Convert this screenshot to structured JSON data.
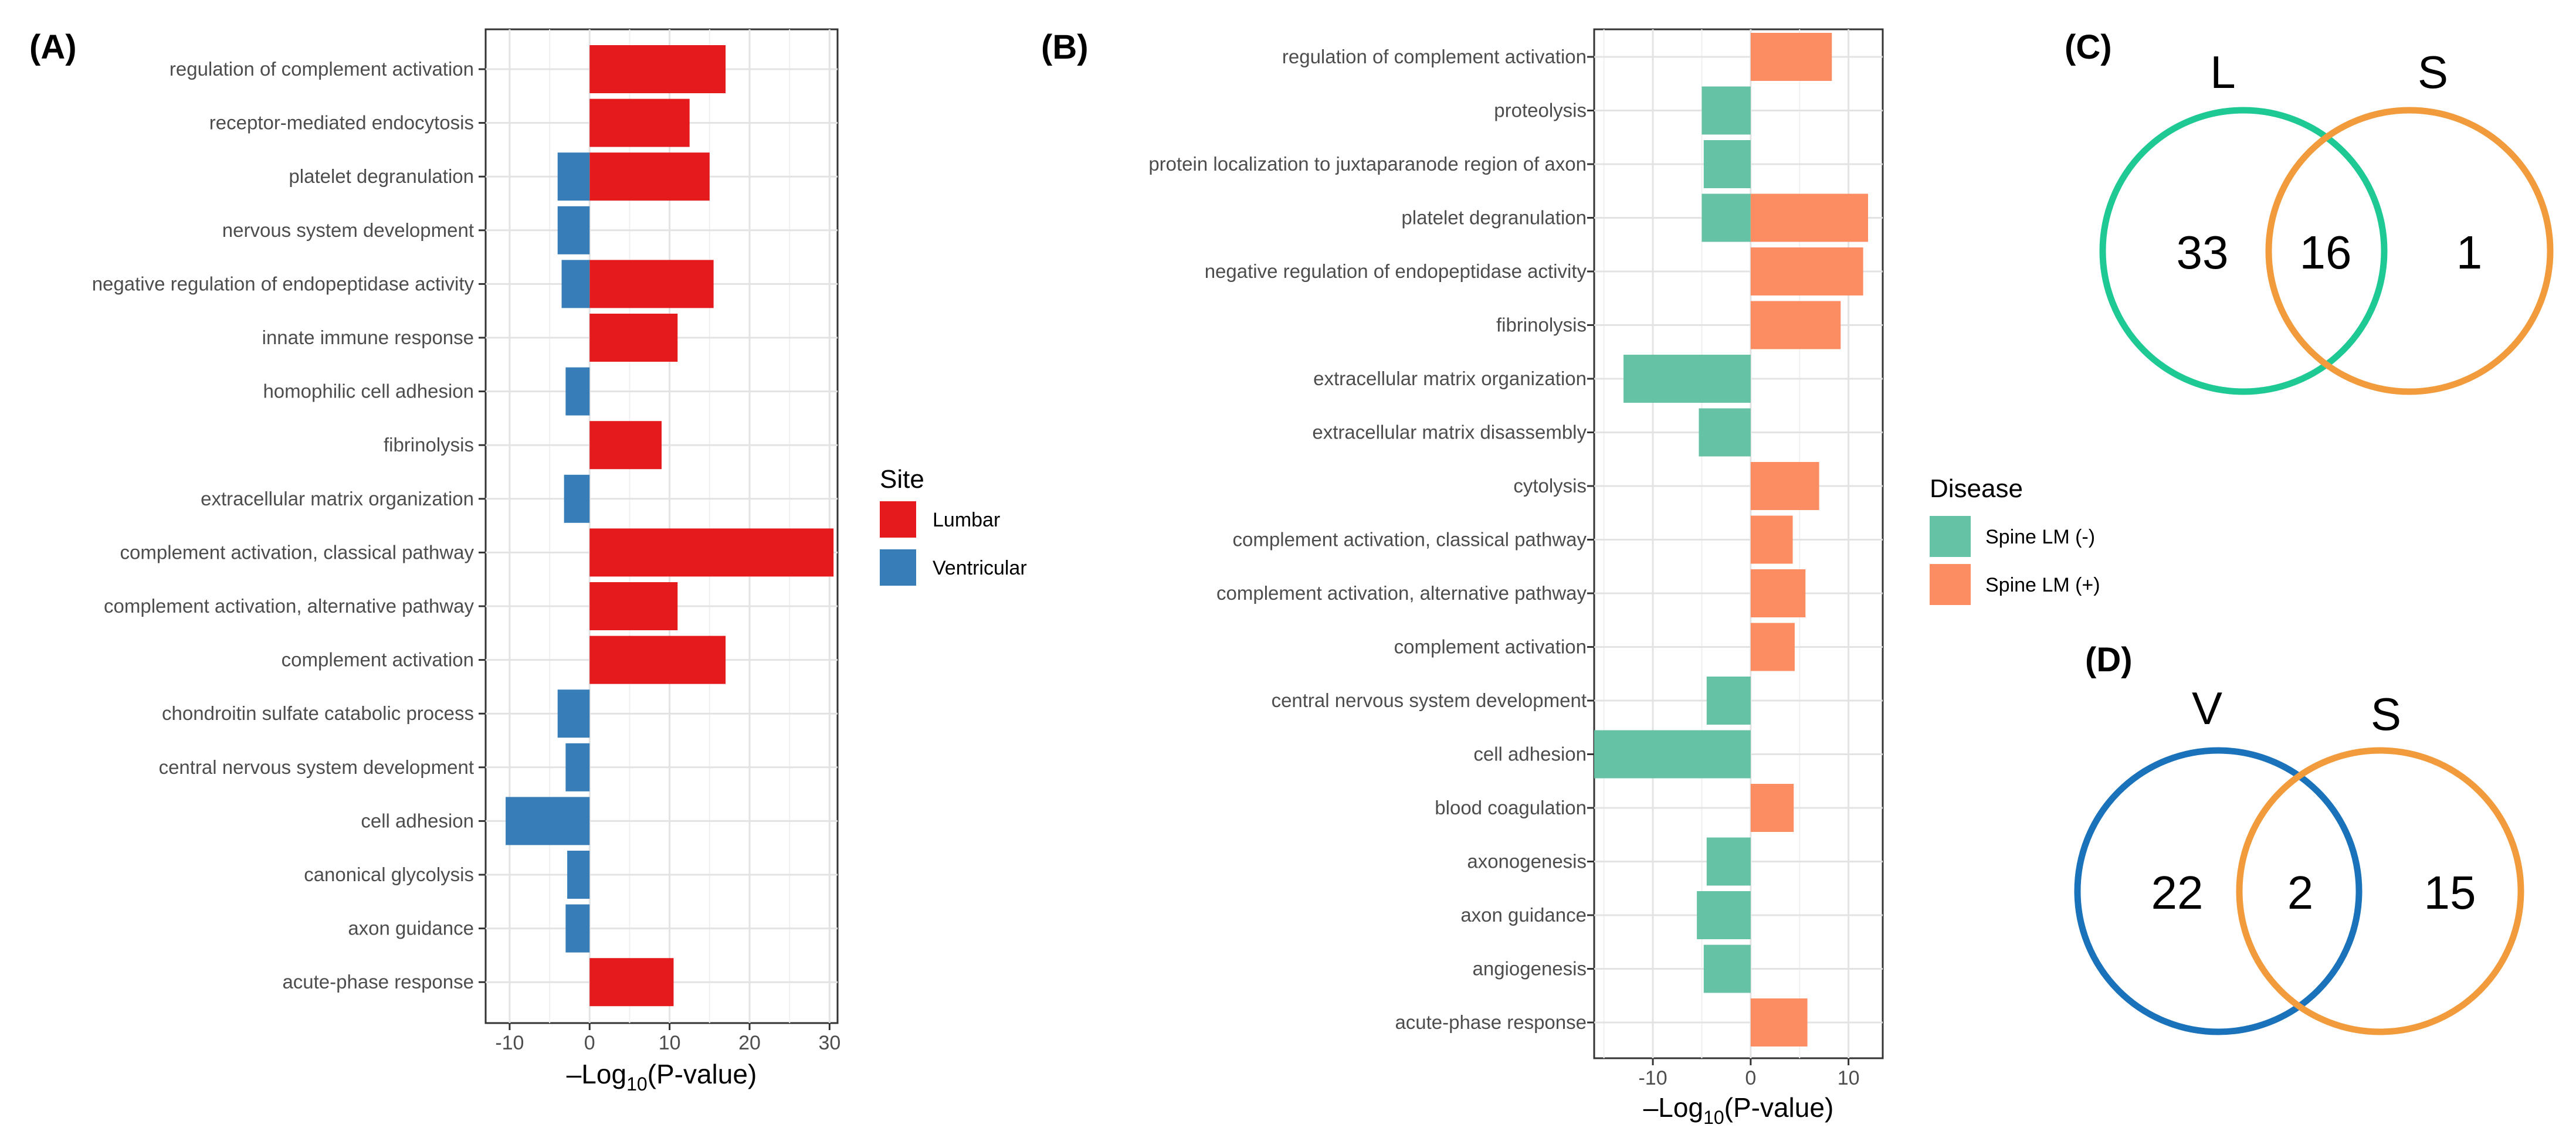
{
  "panels": {
    "A": "(A)",
    "B": "(B)",
    "C": "(C)",
    "D": "(D)"
  },
  "chart_data": [
    {
      "type": "bar",
      "orientation": "horizontal",
      "panel": "(A)",
      "xlabel_prefix": "–Log",
      "xlabel_sub": "10",
      "xlabel_suffix": "(P-value)",
      "xlim": [
        -13,
        31
      ],
      "xticks": [
        -10,
        0,
        10,
        20,
        30
      ],
      "legend": {
        "title": "Site",
        "entries": [
          {
            "name": "Lumbar",
            "color": "#e41a1c"
          },
          {
            "name": "Ventricular",
            "color": "#377eb8"
          }
        ]
      },
      "categories": [
        "regulation of complement activation",
        "receptor-mediated endocytosis",
        "platelet degranulation",
        "nervous system development",
        "negative regulation of endopeptidase activity",
        "innate immune response",
        "homophilic cell adhesion",
        "fibrinolysis",
        "extracellular matrix organization",
        "complement activation, classical pathway",
        "complement activation, alternative pathway",
        "complement activation",
        "chondroitin sulfate catabolic process",
        "central nervous system development",
        "cell adhesion",
        "canonical glycolysis",
        "axon guidance",
        "acute-phase response"
      ],
      "series": [
        {
          "name": "Lumbar",
          "values": [
            17,
            12.5,
            15,
            null,
            15.5,
            11,
            null,
            9,
            null,
            30.5,
            11,
            17,
            null,
            null,
            null,
            null,
            null,
            10.5
          ]
        },
        {
          "name": "Ventricular",
          "values": [
            null,
            null,
            -4,
            -4,
            -3.5,
            null,
            -3,
            null,
            -3.2,
            null,
            null,
            null,
            -4,
            -3,
            -10.5,
            -2.8,
            -3,
            null
          ]
        }
      ]
    },
    {
      "type": "bar",
      "orientation": "horizontal",
      "panel": "(B)",
      "xlabel_prefix": "–Log",
      "xlabel_sub": "10",
      "xlabel_suffix": "(P-value)",
      "xlim": [
        -16,
        13.5
      ],
      "xticks": [
        -10,
        0,
        10
      ],
      "legend": {
        "title": "Disease",
        "entries": [
          {
            "name": "Spine LM (-)",
            "color": "#66c2a5"
          },
          {
            "name": "Spine LM (+)",
            "color": "#fc8d62"
          }
        ]
      },
      "categories": [
        "regulation of complement activation",
        "proteolysis",
        "protein localization to juxtaparanode region of axon",
        "platelet degranulation",
        "negative regulation of endopeptidase activity",
        "fibrinolysis",
        "extracellular matrix organization",
        "extracellular matrix disassembly",
        "cytolysis",
        "complement activation, classical pathway",
        "complement activation, alternative pathway",
        "complement activation",
        "central nervous system development",
        "cell adhesion",
        "blood coagulation",
        "axonogenesis",
        "axon guidance",
        "angiogenesis",
        "acute-phase response"
      ],
      "series": [
        {
          "name": "Spine LM (-)",
          "values": [
            null,
            -5,
            -4.8,
            -5,
            null,
            null,
            -13,
            -5.3,
            null,
            null,
            null,
            null,
            -4.5,
            -16,
            null,
            -4.5,
            -5.5,
            -4.8,
            null
          ]
        },
        {
          "name": "Spine LM (+)",
          "values": [
            8.3,
            null,
            null,
            12,
            11.5,
            9.2,
            null,
            null,
            7,
            4.3,
            5.6,
            4.5,
            null,
            null,
            4.4,
            null,
            null,
            null,
            5.8
          ]
        }
      ]
    }
  ],
  "venns": [
    {
      "panel": "(C)",
      "left_label": "L",
      "right_label": "S",
      "left_only": "33",
      "both": "16",
      "right_only": "1",
      "left_color": "#1ec994",
      "right_color": "#f29b3c"
    },
    {
      "panel": "(D)",
      "left_label": "V",
      "right_label": "S",
      "left_only": "22",
      "both": "2",
      "right_only": "15",
      "left_color": "#1a72bb",
      "right_color": "#f29b3c"
    }
  ]
}
